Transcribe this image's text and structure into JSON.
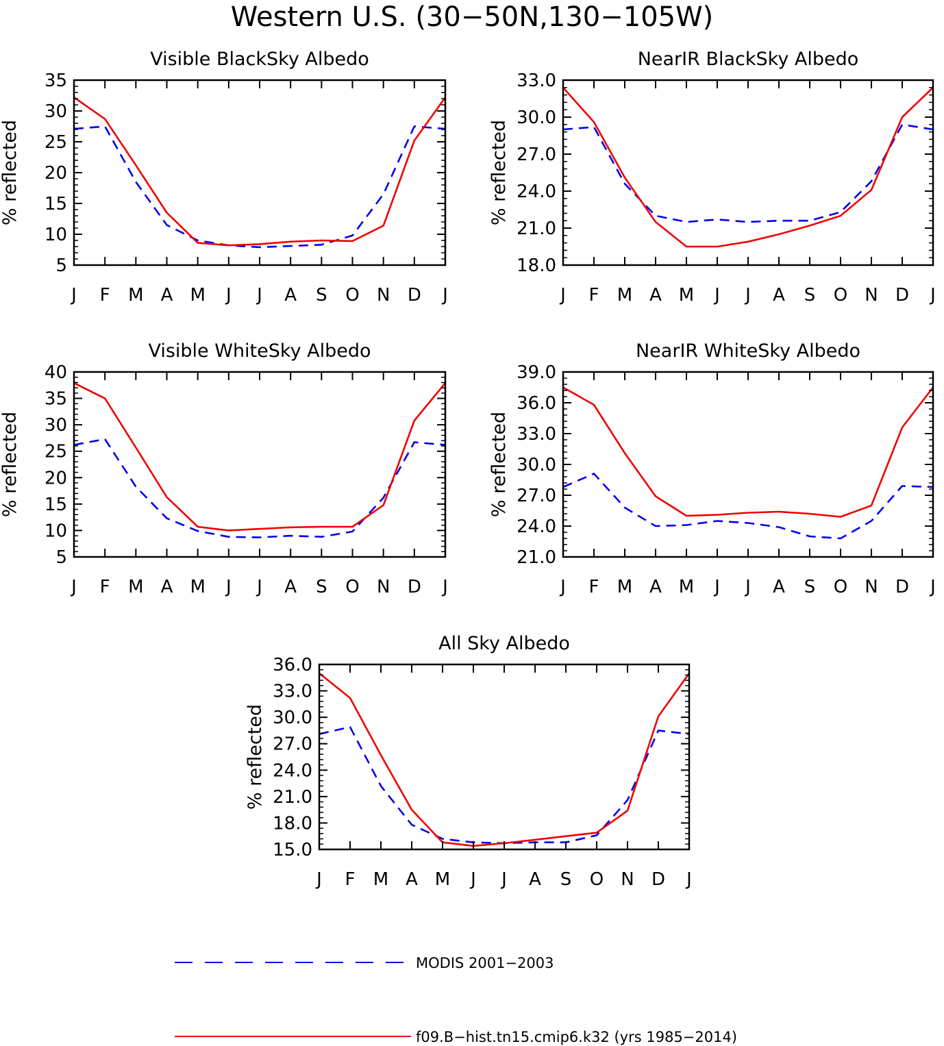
{
  "figure_title": "Western U.S. (30−50N,130−105W)",
  "legend": {
    "modis_label": "MODIS 2001−2003",
    "model_label": "f09.B−hist.tn15.cmip6.k32 (yrs 1985−2014)"
  },
  "colors": {
    "modis": "#0000ee",
    "model": "#ee0000",
    "axes": "#000000"
  },
  "chart_data": [
    {
      "type": "line",
      "title": "Visible BlackSky Albedo",
      "ylabel": "% reflected",
      "categories": [
        "J",
        "F",
        "M",
        "A",
        "M",
        "J",
        "J",
        "A",
        "S",
        "O",
        "N",
        "D",
        "J"
      ],
      "ylim": [
        5,
        35
      ],
      "yticks": [
        "5",
        "10",
        "15",
        "20",
        "25",
        "30",
        "35"
      ],
      "series": [
        {
          "name": "MODIS 2001−2003",
          "values": [
            27.1,
            27.5,
            18.5,
            11.5,
            9.0,
            8.2,
            7.9,
            8.1,
            8.3,
            9.8,
            16.5,
            27.5,
            27.1
          ]
        },
        {
          "name": "f09.B−hist.tn15.cmip6.k32 (yrs 1985−2014)",
          "values": [
            32.2,
            28.7,
            21.2,
            13.5,
            8.6,
            8.2,
            8.4,
            8.8,
            9.0,
            8.9,
            11.4,
            25.2,
            32.2
          ]
        }
      ]
    },
    {
      "type": "line",
      "title": "NearIR BlackSky Albedo",
      "ylabel": "% reflected",
      "categories": [
        "J",
        "F",
        "M",
        "A",
        "M",
        "J",
        "J",
        "A",
        "S",
        "O",
        "N",
        "D",
        "J"
      ],
      "ylim": [
        18,
        33
      ],
      "yticks": [
        "18.0",
        "21.0",
        "24.0",
        "27.0",
        "30.0",
        "33.0"
      ],
      "series": [
        {
          "name": "MODIS 2001−2003",
          "values": [
            29.0,
            29.2,
            24.6,
            22.0,
            21.5,
            21.7,
            21.5,
            21.6,
            21.6,
            22.3,
            24.8,
            29.4,
            29.0
          ]
        },
        {
          "name": "f09.B−hist.tn15.cmip6.k32 (yrs 1985−2014)",
          "values": [
            32.4,
            29.6,
            25.1,
            21.5,
            19.5,
            19.5,
            19.9,
            20.5,
            21.2,
            22.0,
            24.1,
            30.0,
            32.4
          ]
        }
      ]
    },
    {
      "type": "line",
      "title": "Visible WhiteSky Albedo",
      "ylabel": "% reflected",
      "categories": [
        "J",
        "F",
        "M",
        "A",
        "M",
        "J",
        "J",
        "A",
        "S",
        "O",
        "N",
        "D",
        "J"
      ],
      "ylim": [
        5,
        40
      ],
      "yticks": [
        "5",
        "10",
        "15",
        "20",
        "25",
        "30",
        "35",
        "40"
      ],
      "series": [
        {
          "name": "MODIS 2001−2003",
          "values": [
            26.2,
            27.3,
            18.3,
            12.3,
            9.9,
            8.8,
            8.7,
            9.0,
            8.8,
            9.8,
            16.2,
            26.7,
            26.2
          ]
        },
        {
          "name": "f09.B−hist.tn15.cmip6.k32 (yrs 1985−2014)",
          "values": [
            37.9,
            35.0,
            25.7,
            16.3,
            10.7,
            10.0,
            10.3,
            10.6,
            10.7,
            10.7,
            14.8,
            30.8,
            37.9
          ]
        }
      ]
    },
    {
      "type": "line",
      "title": "NearIR WhiteSky Albedo",
      "ylabel": "% reflected",
      "categories": [
        "J",
        "F",
        "M",
        "A",
        "M",
        "J",
        "J",
        "A",
        "S",
        "O",
        "N",
        "D",
        "J"
      ],
      "ylim": [
        21,
        39
      ],
      "yticks": [
        "21.0",
        "24.0",
        "27.0",
        "30.0",
        "33.0",
        "36.0",
        "39.0"
      ],
      "series": [
        {
          "name": "MODIS 2001−2003",
          "values": [
            27.8,
            29.1,
            25.8,
            24.0,
            24.1,
            24.5,
            24.3,
            23.9,
            23.0,
            22.8,
            24.5,
            27.9,
            27.8
          ]
        },
        {
          "name": "f09.B−hist.tn15.cmip6.k32 (yrs 1985−2014)",
          "values": [
            37.5,
            35.8,
            31.1,
            26.9,
            25.0,
            25.1,
            25.3,
            25.4,
            25.2,
            24.9,
            26.0,
            33.6,
            37.5
          ]
        }
      ]
    },
    {
      "type": "line",
      "title": "All Sky Albedo",
      "ylabel": "% reflected",
      "categories": [
        "J",
        "F",
        "M",
        "A",
        "M",
        "J",
        "J",
        "A",
        "S",
        "O",
        "N",
        "D",
        "J"
      ],
      "ylim": [
        15,
        36
      ],
      "yticks": [
        "15.0",
        "18.0",
        "21.0",
        "24.0",
        "27.0",
        "30.0",
        "33.0",
        "36.0"
      ],
      "series": [
        {
          "name": "MODIS 2001−2003",
          "values": [
            28.1,
            28.9,
            22.2,
            17.8,
            16.2,
            15.8,
            15.7,
            15.8,
            15.8,
            16.6,
            20.6,
            28.5,
            28.1
          ]
        },
        {
          "name": "f09.B−hist.tn15.cmip6.k32 (yrs 1985−2014)",
          "values": [
            35.0,
            32.2,
            25.7,
            19.5,
            15.8,
            15.4,
            15.7,
            16.1,
            16.5,
            16.9,
            19.4,
            30.1,
            35.0
          ]
        }
      ]
    }
  ]
}
